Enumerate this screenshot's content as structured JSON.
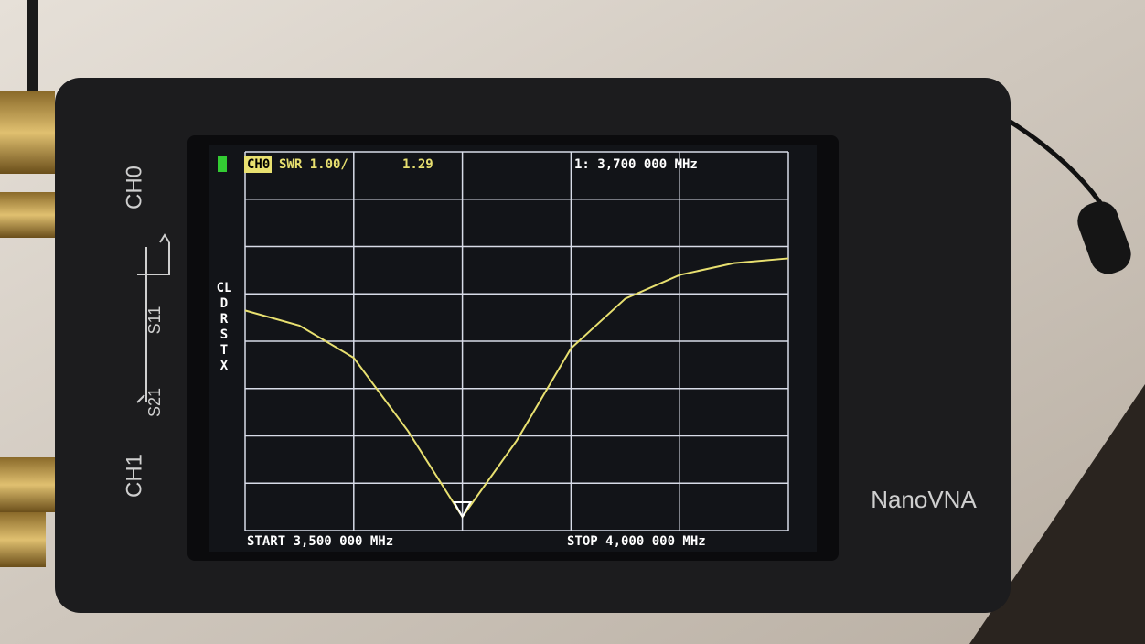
{
  "device": {
    "name": "NanoVNA",
    "ports": [
      "CH0",
      "CH1"
    ],
    "port_labels": [
      "S11",
      "S21"
    ]
  },
  "chart_data": {
    "type": "line",
    "trace_label": "CH0",
    "scale_label": "SWR 1.00/",
    "marker": {
      "label": "1: 3,700 000 MHz",
      "x": 3.7,
      "value": 1.29
    },
    "start_label": "START 3,500 000 MHz",
    "stop_label": "STOP 4,000 000 MHz",
    "menu": [
      "CL",
      "D",
      "R",
      "S",
      "T",
      "X"
    ],
    "x": [
      3.5,
      3.55,
      3.6,
      3.65,
      3.7,
      3.75,
      3.8,
      3.85,
      3.9,
      3.95,
      4.0
    ],
    "series": [
      {
        "name": "CH0",
        "color": "#e8e070",
        "values": [
          5.65,
          5.33,
          4.65,
          3.1,
          1.29,
          2.9,
          4.85,
          5.9,
          6.4,
          6.65,
          6.75
        ]
      }
    ],
    "xlim": [
      3.5,
      4.0
    ],
    "xticks": [
      3.5,
      3.6,
      3.7,
      3.8,
      3.9,
      4.0
    ],
    "ylim": [
      1,
      9
    ],
    "yticks": [
      1,
      2,
      3,
      4,
      5,
      6,
      7,
      8,
      9
    ],
    "grid": true
  }
}
